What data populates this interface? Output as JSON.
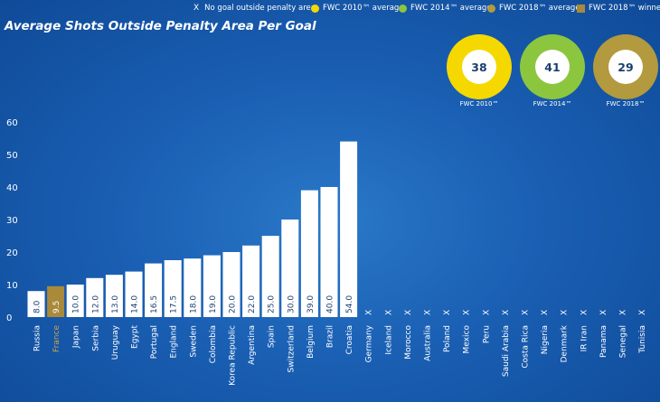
{
  "legend": {
    "x_marker": "X",
    "no_goal": "No goal outside penalty area",
    "fwc2010": "FWC 2010™ average",
    "fwc2014": "FWC 2014™ average",
    "fwc2018": "FWC 2018™ average",
    "winner": "FWC 2018™ winner"
  },
  "colors": {
    "fwc2010": "#f5d800",
    "fwc2014": "#8cc63f",
    "fwc2018": "#b39a3e",
    "winner": "#a9893a",
    "bar": "#ffffff",
    "bar_label": "#1b3f6e",
    "axis_text": "#ffffff"
  },
  "averages": [
    {
      "label": "FWC 2010™",
      "value": "38"
    },
    {
      "label": "FWC 2014™",
      "value": "41"
    },
    {
      "label": "FWC 2018™",
      "value": "29"
    }
  ],
  "chart_data": {
    "type": "bar",
    "title": "Average Shots Outside Penalty Area Per Goal",
    "categories": [
      "Russia",
      "France",
      "Japan",
      "Serbia",
      "Uruguay",
      "Egypt",
      "Portugal",
      "England",
      "Sweden",
      "Colombia",
      "Korea Republic",
      "Argentina",
      "Spain",
      "Switzerland",
      "Belgium",
      "Brazil",
      "Croatia",
      "Germany",
      "Iceland",
      "Morocco",
      "Australia",
      "Poland",
      "Mexico",
      "Peru",
      "Saudi Arabia",
      "Costa Rica",
      "Nigeria",
      "Denmark",
      "IR Iran",
      "Panama",
      "Senegal",
      "Tunisia"
    ],
    "values": [
      8.0,
      9.5,
      10.0,
      12.0,
      13.0,
      14.0,
      16.5,
      17.5,
      18.0,
      19.0,
      20.0,
      22.0,
      25.0,
      30.0,
      39.0,
      40.0,
      54.0,
      null,
      null,
      null,
      null,
      null,
      null,
      null,
      null,
      null,
      null,
      null,
      null,
      null,
      null,
      null
    ],
    "labels": [
      "8.0",
      "9.5",
      "10.0",
      "12.0",
      "13.0",
      "14.0",
      "16.5",
      "17.5",
      "18.0",
      "19.0",
      "20.0",
      "22.0",
      "25.0",
      "30.0",
      "39.0",
      "40.0",
      "54.0",
      "X",
      "X",
      "X",
      "X",
      "X",
      "X",
      "X",
      "X",
      "X",
      "X",
      "X",
      "X",
      "X",
      "X",
      "X"
    ],
    "highlight": "France",
    "yticks": [
      0,
      10,
      20,
      30,
      40,
      50,
      60
    ],
    "ylim": [
      0,
      60
    ],
    "xlabel": "",
    "ylabel": ""
  }
}
